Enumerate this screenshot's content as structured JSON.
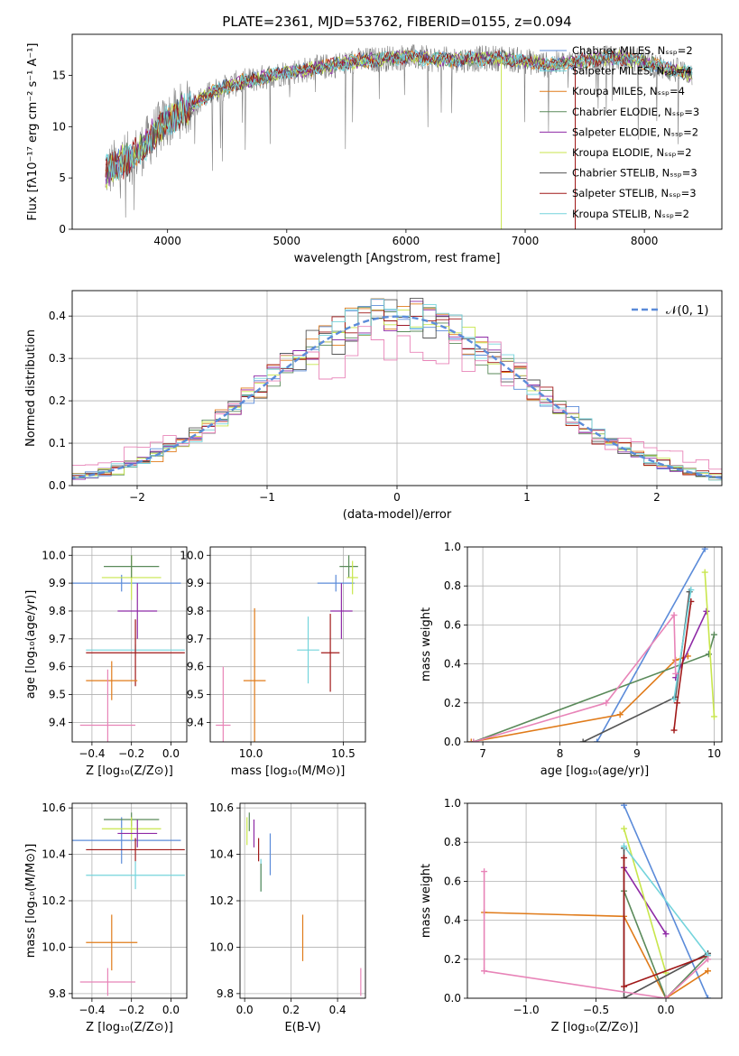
{
  "colors": {
    "blue": "#5b8bd9",
    "orange": "#e07b1a",
    "green": "#5a8a5a",
    "purple": "#8e2aa6",
    "yellow": "#c8e64c",
    "dark": "#555555",
    "red": "#a01818",
    "cyan": "#74d4dc",
    "pink": "#e884b8",
    "gray": "#7f7f7f"
  },
  "chart_data": [
    {
      "id": "spectrum",
      "type": "line",
      "title": "PLATE=2361, MJD=53762, FIBERID=0155, z=0.094",
      "xlabel": "wavelength [Angstrom, rest frame]",
      "ylabel": "Flux [fλ10⁻¹⁷ erg cm⁻² s⁻¹ A⁻¹]",
      "xlim": [
        3200,
        8650
      ],
      "ylim": [
        0,
        19
      ],
      "xticks": [
        "4000",
        "5000",
        "6000",
        "7000",
        "8000"
      ],
      "yticks": [
        "0",
        "5",
        "10",
        "15"
      ],
      "legend_position": "right",
      "legend": [
        {
          "label": "Chabrier MILES, Nₛₛₚ=2",
          "color": "blue"
        },
        {
          "label": "Salpeter MILES, Nₛₛₚ=4",
          "color": "cyan"
        },
        {
          "label": "Kroupa MILES, Nₛₛₚ=4",
          "color": "orange"
        },
        {
          "label": "Chabrier ELODIE, Nₛₛₚ=3",
          "color": "green"
        },
        {
          "label": "Salpeter ELODIE, Nₛₛₚ=2",
          "color": "purple"
        },
        {
          "label": "Kroupa ELODIE, Nₛₛₚ=2",
          "color": "yellow"
        },
        {
          "label": "Chabrier STELIB, Nₛₛₚ=3",
          "color": "dark"
        },
        {
          "label": "Salpeter STELIB, Nₛₛₚ=3",
          "color": "red"
        },
        {
          "label": "Kroupa STELIB, Nₛₛₚ=2",
          "color": "cyan"
        }
      ],
      "envelope": {
        "x": [
          3480,
          3600,
          3700,
          3800,
          3900,
          4000,
          4100,
          4200,
          4300,
          4400,
          4600,
          4800,
          5000,
          5200,
          5400,
          5600,
          5800,
          6000,
          6200,
          6400,
          6600,
          6800,
          7000,
          7200,
          7400,
          7600,
          7800,
          8000,
          8200,
          8400
        ],
        "y": [
          5.5,
          6.5,
          7.0,
          8.0,
          9.5,
          10.5,
          11.5,
          12.0,
          12.8,
          13.5,
          14.3,
          14.8,
          15.3,
          15.6,
          16.0,
          16.4,
          16.6,
          16.8,
          16.6,
          16.5,
          16.6,
          16.7,
          16.4,
          16.0,
          16.3,
          16.6,
          16.7,
          16.3,
          15.6,
          15.2
        ]
      },
      "spikes": [
        {
          "x": 6800,
          "y": 0,
          "color": "yellow"
        },
        {
          "x": 7420,
          "y": 0,
          "color": "red"
        }
      ]
    },
    {
      "id": "residuals",
      "type": "histogram",
      "xlabel": "(data-model)/error",
      "ylabel": "Normed distribution",
      "xlim": [
        -2.5,
        2.5
      ],
      "ylim": [
        0,
        0.46
      ],
      "xticks": [
        "−2",
        "−1",
        "0",
        "1",
        "2"
      ],
      "yticks": [
        "0.0",
        "0.1",
        "0.2",
        "0.3",
        "0.4"
      ],
      "bin_width": 0.1,
      "reference": {
        "label": "𝒩(0, 1)",
        "mean": 0,
        "sigma": 1,
        "color": "blue"
      },
      "series_colors": [
        "blue",
        "orange",
        "green",
        "purple",
        "yellow",
        "dark",
        "red",
        "cyan",
        "pink"
      ]
    },
    {
      "id": "age-vs-z",
      "type": "errorbar",
      "xlabel": "Z [log₁₀(Z/Z⊙)]",
      "ylabel": "age  [log₁₀(age/yr)]",
      "xlim": [
        -0.5,
        0.08
      ],
      "ylim": [
        9.33,
        10.03
      ],
      "xticks": [
        "−0.4",
        "−0.2",
        "0.0"
      ],
      "yticks": [
        "9.4",
        "9.5",
        "9.6",
        "9.7",
        "9.8",
        "9.9",
        "10.0"
      ],
      "points": [
        {
          "x": -0.25,
          "y": 9.9,
          "xerr": 0.3,
          "yerr": 0.03,
          "color": "blue"
        },
        {
          "x": -0.2,
          "y": 9.92,
          "xerr": 0.15,
          "yerr": 0.08,
          "color": "yellow"
        },
        {
          "x": -0.2,
          "y": 9.96,
          "xerr": 0.14,
          "yerr": 0.04,
          "color": "green"
        },
        {
          "x": -0.17,
          "y": 9.8,
          "xerr": 0.1,
          "yerr": 0.1,
          "color": "purple"
        },
        {
          "x": -0.18,
          "y": 9.66,
          "xerr": 0.25,
          "yerr": 0.02,
          "color": "cyan"
        },
        {
          "x": -0.18,
          "y": 9.65,
          "xerr": 0.25,
          "yerr": 0.12,
          "color": "red"
        },
        {
          "x": -0.3,
          "y": 9.55,
          "xerr": 0.13,
          "yerr": 0.07,
          "color": "orange"
        },
        {
          "x": -0.32,
          "y": 9.39,
          "xerr": 0.14,
          "yerr": 0.2,
          "color": "pink"
        }
      ]
    },
    {
      "id": "age-vs-mass",
      "type": "errorbar",
      "xlabel": "mass [log₁₀(M/M⊙)]",
      "ylabel": "",
      "xlim": [
        9.78,
        10.62
      ],
      "ylim": [
        9.33,
        10.03
      ],
      "xticks": [
        "10.0",
        "10.5"
      ],
      "yticks": [
        "9.4",
        "9.5",
        "9.6",
        "9.7",
        "9.8",
        "9.9",
        "10.0"
      ],
      "points": [
        {
          "x": 10.46,
          "y": 9.9,
          "xerr": 0.1,
          "yerr": 0.03,
          "color": "blue"
        },
        {
          "x": 10.53,
          "y": 9.96,
          "xerr": 0.05,
          "yerr": 0.04,
          "color": "green"
        },
        {
          "x": 10.55,
          "y": 9.92,
          "xerr": 0.03,
          "yerr": 0.06,
          "color": "yellow"
        },
        {
          "x": 10.49,
          "y": 9.8,
          "xerr": 0.06,
          "yerr": 0.1,
          "color": "purple"
        },
        {
          "x": 10.31,
          "y": 9.66,
          "xerr": 0.06,
          "yerr": 0.12,
          "color": "cyan"
        },
        {
          "x": 10.43,
          "y": 9.65,
          "xerr": 0.05,
          "yerr": 0.14,
          "color": "red"
        },
        {
          "x": 10.02,
          "y": 9.55,
          "xerr": 0.06,
          "yerr": 0.26,
          "color": "orange"
        },
        {
          "x": 9.85,
          "y": 9.39,
          "xerr": 0.04,
          "yerr": 0.21,
          "color": "pink"
        }
      ]
    },
    {
      "id": "massweight-vs-age",
      "type": "line",
      "xlabel": "age  [log₁₀(age/yr)]",
      "ylabel": "mass weight",
      "xlim": [
        6.8,
        10.1
      ],
      "ylim": [
        0,
        1
      ],
      "xticks": [
        "7",
        "8",
        "9",
        "10"
      ],
      "yticks": [
        "0.0",
        "0.2",
        "0.4",
        "0.6",
        "0.8",
        "1.0"
      ],
      "series": [
        {
          "color": "blue",
          "x": [
            8.48,
            9.88
          ],
          "y": [
            0.0,
            0.99
          ]
        },
        {
          "color": "orange",
          "x": [
            6.85,
            8.78,
            9.5,
            9.66
          ],
          "y": [
            0.0,
            0.14,
            0.42,
            0.44
          ]
        },
        {
          "color": "green",
          "x": [
            6.88,
            9.93,
            10.0
          ],
          "y": [
            0.0,
            0.45,
            0.55
          ]
        },
        {
          "color": "purple",
          "x": [
            9.5,
            9.9
          ],
          "y": [
            0.33,
            0.67
          ]
        },
        {
          "color": "yellow",
          "x": [
            9.88,
            10.0
          ],
          "y": [
            0.87,
            0.13
          ]
        },
        {
          "color": "dark",
          "x": [
            8.3,
            9.5,
            9.68
          ],
          "y": [
            0.0,
            0.23,
            0.77
          ]
        },
        {
          "color": "red",
          "x": [
            9.48,
            9.52,
            9.7
          ],
          "y": [
            0.06,
            0.2,
            0.72
          ]
        },
        {
          "color": "cyan",
          "x": [
            9.48,
            9.7
          ],
          "y": [
            0.22,
            0.78
          ]
        },
        {
          "color": "pink",
          "x": [
            6.88,
            8.6,
            9.48,
            9.5
          ],
          "y": [
            0.0,
            0.2,
            0.65,
            0.35
          ]
        }
      ]
    },
    {
      "id": "mass-vs-z",
      "type": "errorbar",
      "xlabel": "Z [log₁₀(Z/Z⊙)]",
      "ylabel": "mass [log₁₀(M/M⊙)]",
      "xlim": [
        -0.5,
        0.08
      ],
      "ylim": [
        9.78,
        10.62
      ],
      "xticks": [
        "−0.4",
        "−0.2",
        "0.0"
      ],
      "yticks": [
        "9.8",
        "10.0",
        "10.2",
        "10.4",
        "10.6"
      ],
      "points": [
        {
          "x": -0.25,
          "y": 10.46,
          "xerr": 0.3,
          "yerr": 0.1,
          "color": "blue"
        },
        {
          "x": -0.2,
          "y": 10.55,
          "xerr": 0.14,
          "yerr": 0.03,
          "color": "green"
        },
        {
          "x": -0.2,
          "y": 10.51,
          "xerr": 0.15,
          "yerr": 0.05,
          "color": "yellow"
        },
        {
          "x": -0.17,
          "y": 10.49,
          "xerr": 0.1,
          "yerr": 0.06,
          "color": "purple"
        },
        {
          "x": -0.18,
          "y": 10.42,
          "xerr": 0.25,
          "yerr": 0.05,
          "color": "red"
        },
        {
          "x": -0.18,
          "y": 10.31,
          "xerr": 0.25,
          "yerr": 0.06,
          "color": "cyan"
        },
        {
          "x": -0.3,
          "y": 10.02,
          "xerr": 0.13,
          "yerr": 0.12,
          "color": "orange"
        },
        {
          "x": -0.32,
          "y": 9.85,
          "xerr": 0.14,
          "yerr": 0.06,
          "color": "pink"
        }
      ]
    },
    {
      "id": "mass-vs-ebv",
      "type": "errorbar",
      "xlabel": "E(B-V)",
      "ylabel": "",
      "xlim": [
        -0.02,
        0.52
      ],
      "ylim": [
        9.78,
        10.62
      ],
      "xticks": [
        "0.0",
        "0.2",
        "0.4"
      ],
      "yticks": [
        "9.8",
        "10.0",
        "10.2",
        "10.4",
        "10.6"
      ],
      "points": [
        {
          "x": 0.01,
          "y": 10.5,
          "xerr": 0,
          "yerr": 0.06,
          "color": "yellow"
        },
        {
          "x": 0.02,
          "y": 10.54,
          "xerr": 0,
          "yerr": 0.04,
          "color": "green"
        },
        {
          "x": 0.04,
          "y": 10.49,
          "xerr": 0,
          "yerr": 0.06,
          "color": "purple"
        },
        {
          "x": 0.06,
          "y": 10.42,
          "xerr": 0,
          "yerr": 0.05,
          "color": "red"
        },
        {
          "x": 0.07,
          "y": 10.31,
          "xerr": 0,
          "yerr": 0.07,
          "color": "cyan"
        },
        {
          "x": 0.07,
          "y": 10.3,
          "xerr": 0,
          "yerr": 0.06,
          "color": "green"
        },
        {
          "x": 0.11,
          "y": 10.4,
          "xerr": 0,
          "yerr": 0.09,
          "color": "blue"
        },
        {
          "x": 0.25,
          "y": 10.04,
          "xerr": 0,
          "yerr": 0.1,
          "color": "orange"
        },
        {
          "x": 0.5,
          "y": 9.85,
          "xerr": 0,
          "yerr": 0.06,
          "color": "pink"
        }
      ]
    },
    {
      "id": "massweight-vs-z",
      "type": "line",
      "xlabel": "Z [log₁₀(Z/Z⊙)]",
      "ylabel": "mass weight",
      "xlim": [
        -1.42,
        0.4
      ],
      "ylim": [
        0,
        1
      ],
      "xticks": [
        "−1.0",
        "−0.5",
        "0.0"
      ],
      "yticks": [
        "0.0",
        "0.2",
        "0.4",
        "0.6",
        "0.8",
        "1.0"
      ],
      "series": [
        {
          "color": "blue",
          "x": [
            -0.3,
            0.3
          ],
          "y": [
            0.99,
            0.0
          ]
        },
        {
          "color": "orange",
          "x": [
            -1.3,
            -0.3,
            0.0,
            0.3
          ],
          "y": [
            0.44,
            0.42,
            0.0,
            0.14
          ]
        },
        {
          "color": "green",
          "x": [
            -0.3,
            0.0,
            0.3
          ],
          "y": [
            0.55,
            0.0,
            0.22
          ]
        },
        {
          "color": "purple",
          "x": [
            -0.3,
            0.0
          ],
          "y": [
            0.67,
            0.33
          ]
        },
        {
          "color": "yellow",
          "x": [
            -0.3,
            0.0
          ],
          "y": [
            0.87,
            0.13
          ]
        },
        {
          "color": "dark",
          "x": [
            -0.3,
            -0.3,
            0.3
          ],
          "y": [
            0.77,
            0.0,
            0.23
          ]
        },
        {
          "color": "red",
          "x": [
            -0.3,
            -0.3,
            0.3
          ],
          "y": [
            0.72,
            0.06,
            0.22
          ]
        },
        {
          "color": "cyan",
          "x": [
            -0.3,
            0.3
          ],
          "y": [
            0.78,
            0.22
          ]
        },
        {
          "color": "pink",
          "x": [
            -1.3,
            -1.3,
            0.0,
            0.3
          ],
          "y": [
            0.65,
            0.14,
            0.0,
            0.2
          ]
        }
      ]
    }
  ]
}
